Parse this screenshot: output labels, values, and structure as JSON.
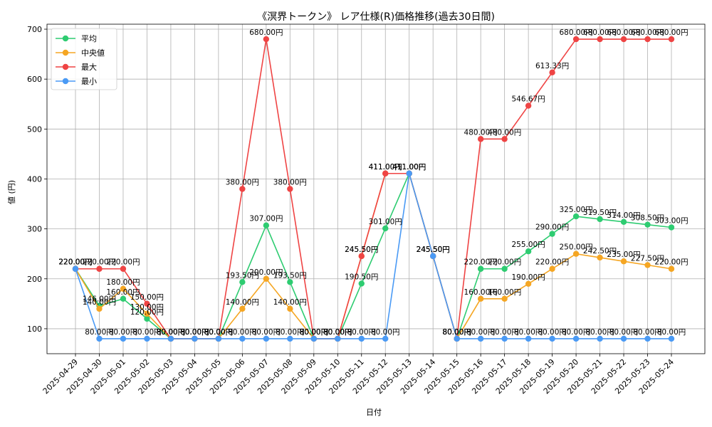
{
  "chart_data": {
    "type": "line",
    "title": "《溟界トークン》 レア仕様(R)価格推移(過去30日間)",
    "xlabel": "日付",
    "ylabel": "値 (円)",
    "ylim": [
      50,
      710
    ],
    "yticks": [
      100,
      200,
      300,
      400,
      500,
      600,
      700
    ],
    "grid": true,
    "legend_position": "top-left",
    "label_suffix": "円",
    "x": [
      "2025-04-29",
      "2025-04-30",
      "2025-05-01",
      "2025-05-02",
      "2025-05-03",
      "2025-05-04",
      "2025-05-05",
      "2025-05-06",
      "2025-05-07",
      "2025-05-08",
      "2025-05-09",
      "2025-05-10",
      "2025-05-11",
      "2025-05-12",
      "2025-05-13",
      "2025-05-14",
      "2025-05-15",
      "2025-05-16",
      "2025-05-17",
      "2025-05-18",
      "2025-05-19",
      "2025-05-20",
      "2025-05-21",
      "2025-05-22",
      "2025-05-23",
      "2025-05-24"
    ],
    "series": [
      {
        "name": "平均",
        "color": "#2ecc71",
        "values": [
          220,
          146,
          160,
          120,
          80,
          80,
          80,
          193.5,
          307,
          193.5,
          80,
          80,
          190.5,
          301,
          411,
          245.5,
          80,
          220,
          220,
          255,
          290,
          325,
          319.5,
          314,
          308.5,
          303
        ]
      },
      {
        "name": "中央値",
        "color": "#f5a623",
        "values": [
          220,
          140,
          180,
          130,
          80,
          80,
          80,
          140,
          200,
          140,
          80,
          80,
          245.5,
          411,
          411,
          245.5,
          80,
          160,
          160,
          190,
          220,
          250,
          242.5,
          235,
          227.5,
          220
        ]
      },
      {
        "name": "最大",
        "color": "#ef4444",
        "values": [
          220,
          220,
          220,
          150,
          80,
          80,
          80,
          380,
          680,
          380,
          80,
          80,
          245.5,
          411,
          411,
          245.5,
          80,
          480,
          480,
          546.67,
          613.33,
          680,
          680,
          680,
          680,
          680
        ]
      },
      {
        "name": "最小",
        "color": "#4a9af5",
        "values": [
          220,
          80,
          80,
          80,
          80,
          80,
          80,
          80,
          80,
          80,
          80,
          80,
          80,
          80,
          411,
          245.5,
          80,
          80,
          80,
          80,
          80,
          80,
          80,
          80,
          80,
          80
        ]
      }
    ]
  }
}
